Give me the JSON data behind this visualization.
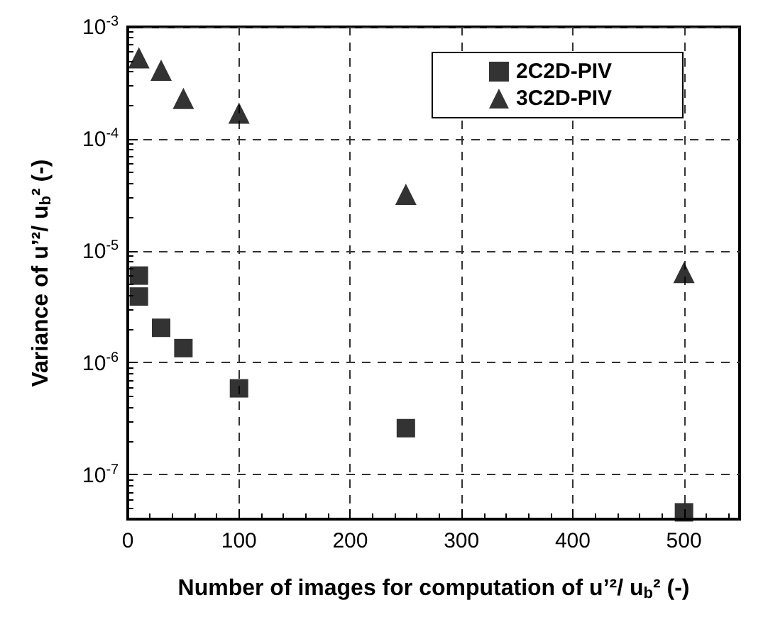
{
  "chart_data": {
    "type": "scatter",
    "xlabel": "Number of images for computation of u’²/ u$_{b}$² (-)",
    "ylabel": "Variance of u’²/ u$_{b}$² (-)",
    "series": [
      {
        "name": "2C2D-PIV",
        "color": "#000000",
        "marker": "square",
        "x": [
          10,
          10,
          30,
          50,
          100,
          250,
          500
        ],
        "values": [
          6e-06,
          3.9e-06,
          2.05e-06,
          1.35e-06,
          5.9e-07,
          2.6e-07,
          4.6e-08
        ]
      },
      {
        "name": "3C2D-PIV",
        "color": "#000000",
        "marker": "triangle",
        "x": [
          10,
          30,
          50,
          100,
          250,
          500
        ],
        "values": [
          0.00053,
          0.00041,
          0.00023,
          0.00017,
          3.2e-05,
          6.4e-06
        ]
      }
    ],
    "xlim": [
      0,
      550
    ],
    "xticks": [
      0,
      100,
      200,
      300,
      400,
      500
    ],
    "ylim": [
      4e-08,
      0.001
    ],
    "yticks": [
      {
        "value": 1e-07,
        "label": "10$^{-7}$"
      },
      {
        "value": 1e-06,
        "label": "10$^{-6}$"
      },
      {
        "value": 1e-05,
        "label": "10$^{-5}$"
      },
      {
        "value": 0.0001,
        "label": "10$^{-4}$"
      },
      {
        "value": 0.001,
        "label": "10$^{-3}$"
      }
    ],
    "log": "y",
    "grid": true,
    "legend": "top right"
  }
}
